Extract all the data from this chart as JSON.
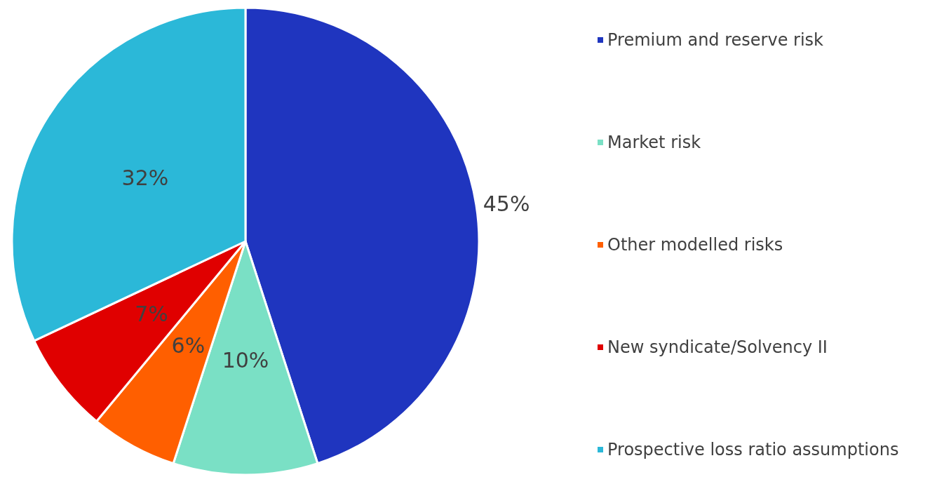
{
  "chart_data": {
    "type": "pie",
    "categories": [
      "Premium and reserve risk",
      "Market risk",
      "Other modelled risks",
      "New syndicate/Solvency II",
      "Prospective loss ratio assumptions"
    ],
    "values": [
      45,
      10,
      6,
      7,
      32
    ],
    "colors": [
      "#1f35bf",
      "#7ae0c5",
      "#ff5f00",
      "#e00000",
      "#2bb8d8"
    ],
    "value_labels": [
      "45%",
      "10%",
      "6%",
      "7%",
      "32%"
    ],
    "legend": "right"
  }
}
